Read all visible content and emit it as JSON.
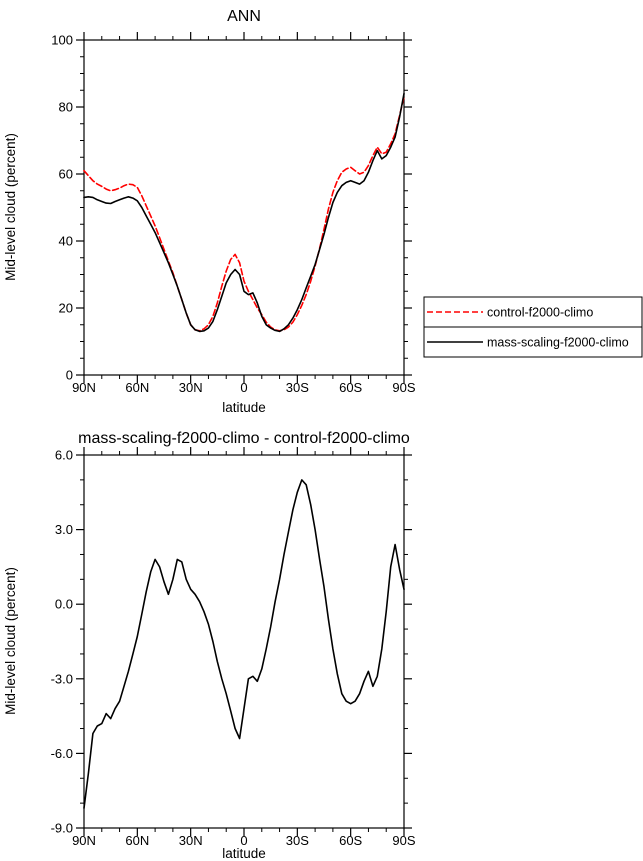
{
  "figure": {
    "background": "#ffffff",
    "frame_color": "#000000"
  },
  "chart_data": [
    {
      "type": "line",
      "title": "ANN",
      "xlabel": "latitude",
      "ylabel": "Mid-level cloud (percent)",
      "xlim": [
        90,
        -90
      ],
      "ylim": [
        0,
        100
      ],
      "grid": false,
      "y_minor_step": 5,
      "x_minor_step": 10,
      "yticks": [
        {
          "value": 0,
          "label": "0"
        },
        {
          "value": 20,
          "label": "20"
        },
        {
          "value": 40,
          "label": "40"
        },
        {
          "value": 60,
          "label": "60"
        },
        {
          "value": 80,
          "label": "80"
        },
        {
          "value": 100,
          "label": "100"
        }
      ],
      "xticks": [
        {
          "value": 90,
          "label": "90N"
        },
        {
          "value": 60,
          "label": "60N"
        },
        {
          "value": 30,
          "label": "30N"
        },
        {
          "value": 0,
          "label": "0"
        },
        {
          "value": -30,
          "label": "30S"
        },
        {
          "value": -60,
          "label": "60S"
        },
        {
          "value": -90,
          "label": "90S"
        }
      ],
      "x": [
        90,
        87.5,
        85,
        82.5,
        80,
        77.5,
        75,
        72.5,
        70,
        67.5,
        65,
        62.5,
        60,
        57.5,
        55,
        52.5,
        50,
        47.5,
        45,
        42.5,
        40,
        37.5,
        35,
        32.5,
        30,
        27.5,
        25,
        22.5,
        20,
        17.5,
        15,
        12.5,
        10,
        7.5,
        5,
        2.5,
        0,
        -2.5,
        -5,
        -7.5,
        -10,
        -12.5,
        -15,
        -17.5,
        -20,
        -22.5,
        -25,
        -27.5,
        -30,
        -32.5,
        -35,
        -37.5,
        -40,
        -42.5,
        -45,
        -47.5,
        -50,
        -52.5,
        -55,
        -57.5,
        -60,
        -62.5,
        -65,
        -67.5,
        -70,
        -72.5,
        -75,
        -77.5,
        -80,
        -82.5,
        -85,
        -87.5,
        -90
      ],
      "series": [
        {
          "name": "control-f2000-climo",
          "color": "#ff0000",
          "dashed": true,
          "values": [
            61.0,
            59.5,
            58.0,
            57.0,
            56.3,
            55.5,
            55.0,
            55.3,
            55.8,
            56.5,
            57.0,
            56.8,
            56.0,
            53.5,
            50.5,
            47.5,
            44.5,
            41.0,
            37.5,
            34.0,
            30.5,
            26.5,
            22.5,
            18.5,
            15.0,
            13.5,
            13.2,
            13.8,
            15.0,
            17.5,
            21.5,
            26.5,
            31.0,
            34.5,
            36.0,
            33.5,
            28.0,
            25.0,
            22.5,
            20.0,
            18.0,
            15.8,
            14.3,
            13.5,
            13.2,
            13.5,
            14.3,
            15.8,
            18.0,
            20.8,
            24.0,
            28.0,
            32.5,
            37.8,
            43.5,
            49.5,
            54.5,
            58.0,
            60.5,
            61.5,
            62.0,
            61.0,
            60.0,
            60.5,
            62.5,
            65.5,
            68.0,
            66.0,
            66.5,
            69.0,
            72.0,
            77.5,
            83.0
          ]
        },
        {
          "name": "mass-scaling-f2000-climo",
          "color": "#000000",
          "dashed": false,
          "values": [
            53.0,
            53.2,
            53.0,
            52.3,
            51.8,
            51.3,
            51.2,
            51.8,
            52.3,
            52.8,
            53.2,
            52.8,
            52.0,
            50.0,
            47.5,
            45.0,
            42.5,
            39.5,
            36.5,
            33.5,
            30.0,
            26.5,
            22.5,
            18.5,
            15.0,
            13.5,
            13.0,
            13.2,
            14.0,
            16.0,
            19.5,
            23.5,
            27.5,
            30.0,
            31.5,
            30.0,
            25.0,
            24.0,
            24.5,
            21.5,
            17.5,
            15.0,
            14.0,
            13.3,
            13.0,
            13.8,
            15.0,
            17.0,
            19.5,
            22.5,
            26.0,
            29.5,
            33.0,
            37.5,
            42.0,
            47.0,
            51.5,
            54.5,
            56.5,
            57.5,
            58.0,
            57.5,
            57.0,
            58.0,
            60.5,
            64.0,
            67.0,
            64.5,
            65.5,
            68.0,
            71.0,
            77.0,
            84.0
          ]
        }
      ],
      "legend": {
        "position": "right-outside",
        "entries": [
          "control-f2000-climo",
          "mass-scaling-f2000-climo"
        ]
      }
    },
    {
      "type": "line",
      "title": "mass-scaling-f2000-climo - control-f2000-climo",
      "xlabel": "latitude",
      "ylabel": "Mid-level cloud (percent)",
      "xlim": [
        90,
        -90
      ],
      "ylim": [
        -9,
        6
      ],
      "grid": false,
      "y_minor_step": 1,
      "x_minor_step": 10,
      "yticks": [
        {
          "value": -9,
          "label": "-9.0"
        },
        {
          "value": -6,
          "label": "-6.0"
        },
        {
          "value": -3,
          "label": "-3.0"
        },
        {
          "value": 0,
          "label": "0.0"
        },
        {
          "value": 3,
          "label": "3.0"
        },
        {
          "value": 6,
          "label": "6.0"
        }
      ],
      "xticks": [
        {
          "value": 90,
          "label": "90N"
        },
        {
          "value": 60,
          "label": "60N"
        },
        {
          "value": 30,
          "label": "30N"
        },
        {
          "value": 0,
          "label": "0"
        },
        {
          "value": -30,
          "label": "30S"
        },
        {
          "value": -60,
          "label": "60S"
        },
        {
          "value": -90,
          "label": "90S"
        }
      ],
      "x": [
        90,
        87.5,
        85,
        82.5,
        80,
        77.5,
        75,
        72.5,
        70,
        67.5,
        65,
        62.5,
        60,
        57.5,
        55,
        52.5,
        50,
        47.5,
        45,
        42.5,
        40,
        37.5,
        35,
        32.5,
        30,
        27.5,
        25,
        22.5,
        20,
        17.5,
        15,
        12.5,
        10,
        7.5,
        5,
        2.5,
        0,
        -2.5,
        -5,
        -7.5,
        -10,
        -12.5,
        -15,
        -17.5,
        -20,
        -22.5,
        -25,
        -27.5,
        -30,
        -32.5,
        -35,
        -37.5,
        -40,
        -42.5,
        -45,
        -47.5,
        -50,
        -52.5,
        -55,
        -57.5,
        -60,
        -62.5,
        -65,
        -67.5,
        -70,
        -72.5,
        -75,
        -77.5,
        -80,
        -82.5,
        -85,
        -87.5,
        -90
      ],
      "series": [
        {
          "name": "mass-scaling-f2000-climo - control-f2000-climo",
          "color": "#000000",
          "dashed": false,
          "values": [
            -8.2,
            -6.8,
            -5.2,
            -4.9,
            -4.8,
            -4.4,
            -4.6,
            -4.2,
            -3.9,
            -3.3,
            -2.7,
            -2.0,
            -1.3,
            -0.4,
            0.5,
            1.3,
            1.8,
            1.5,
            0.9,
            0.4,
            1.0,
            1.8,
            1.7,
            1.0,
            0.6,
            0.4,
            0.1,
            -0.3,
            -0.8,
            -1.5,
            -2.3,
            -3.0,
            -3.6,
            -4.3,
            -5.0,
            -5.4,
            -4.2,
            -3.0,
            -2.9,
            -3.1,
            -2.6,
            -1.8,
            -0.9,
            0.1,
            1.0,
            2.0,
            2.9,
            3.8,
            4.5,
            5.0,
            4.8,
            4.0,
            3.0,
            1.8,
            0.7,
            -0.6,
            -1.8,
            -2.8,
            -3.6,
            -3.9,
            -4.0,
            -3.9,
            -3.6,
            -3.1,
            -2.7,
            -3.3,
            -2.9,
            -1.8,
            -0.3,
            1.5,
            2.4,
            1.4,
            0.6
          ]
        }
      ]
    }
  ]
}
